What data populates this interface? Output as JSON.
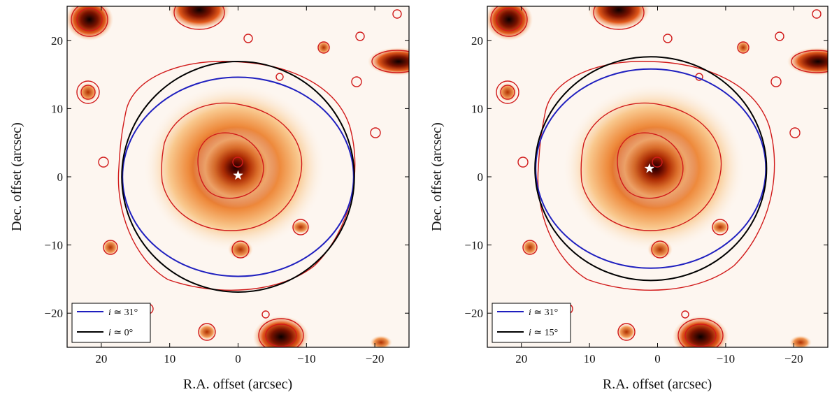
{
  "chart_data": [
    {
      "type": "image-contour",
      "panel": "left",
      "xlabel": "R.A. offset (arcsec)",
      "ylabel": "Dec. offset (arcsec)",
      "xlim": [
        25,
        -25
      ],
      "ylim": [
        -25,
        25
      ],
      "xticks": [
        20,
        10,
        0,
        -10,
        -20
      ],
      "yticks": [
        20,
        10,
        0,
        -10,
        -20
      ],
      "xtick_labels": [
        "20",
        "10",
        "0",
        "−10",
        "−20"
      ],
      "ytick_labels": [
        "20",
        "10",
        "0",
        "−10",
        "−20"
      ],
      "star": {
        "x": 0.0,
        "y": 0.2
      },
      "ellipses": [
        {
          "name": "i ≃ 31°",
          "label_var": "i",
          "label_rest": " ≃ 31°",
          "color": "#1f1fbf",
          "cx": 0.0,
          "cy": 0.0,
          "rx": 16.9,
          "ry": 14.6
        },
        {
          "name": "i ≃ 0°",
          "label_var": "i",
          "label_rest": " ≃ 0°",
          "color": "#000000",
          "cx": 0.0,
          "cy": 0.0,
          "rx": 17.0,
          "ry": 16.9
        }
      ],
      "legend_position": "lower-left"
    },
    {
      "type": "image-contour",
      "panel": "right",
      "xlabel": "R.A. offset (arcsec)",
      "ylabel": "Dec. offset (arcsec)",
      "xlim": [
        25,
        -25
      ],
      "ylim": [
        -25,
        25
      ],
      "xticks": [
        20,
        10,
        0,
        -10,
        -20
      ],
      "yticks": [
        20,
        10,
        0,
        -10,
        -20
      ],
      "xtick_labels": [
        "20",
        "10",
        "0",
        "−10",
        "−20"
      ],
      "ytick_labels": [
        "20",
        "10",
        "0",
        "−10",
        "−20"
      ],
      "star": {
        "x": 1.2,
        "y": 1.2
      },
      "ellipses": [
        {
          "name": "i ≃ 31°",
          "label_var": "i",
          "label_rest": " ≃ 31°",
          "color": "#1f1fbf",
          "cx": 1.0,
          "cy": 1.2,
          "rx": 16.9,
          "ry": 14.6
        },
        {
          "name": "i ≃ 15°",
          "label_var": "i",
          "label_rest": " ≃ 15°",
          "color": "#000000",
          "cx": 1.0,
          "cy": 1.2,
          "rx": 17.0,
          "ry": 16.4
        }
      ],
      "legend_position": "lower-left"
    }
  ]
}
